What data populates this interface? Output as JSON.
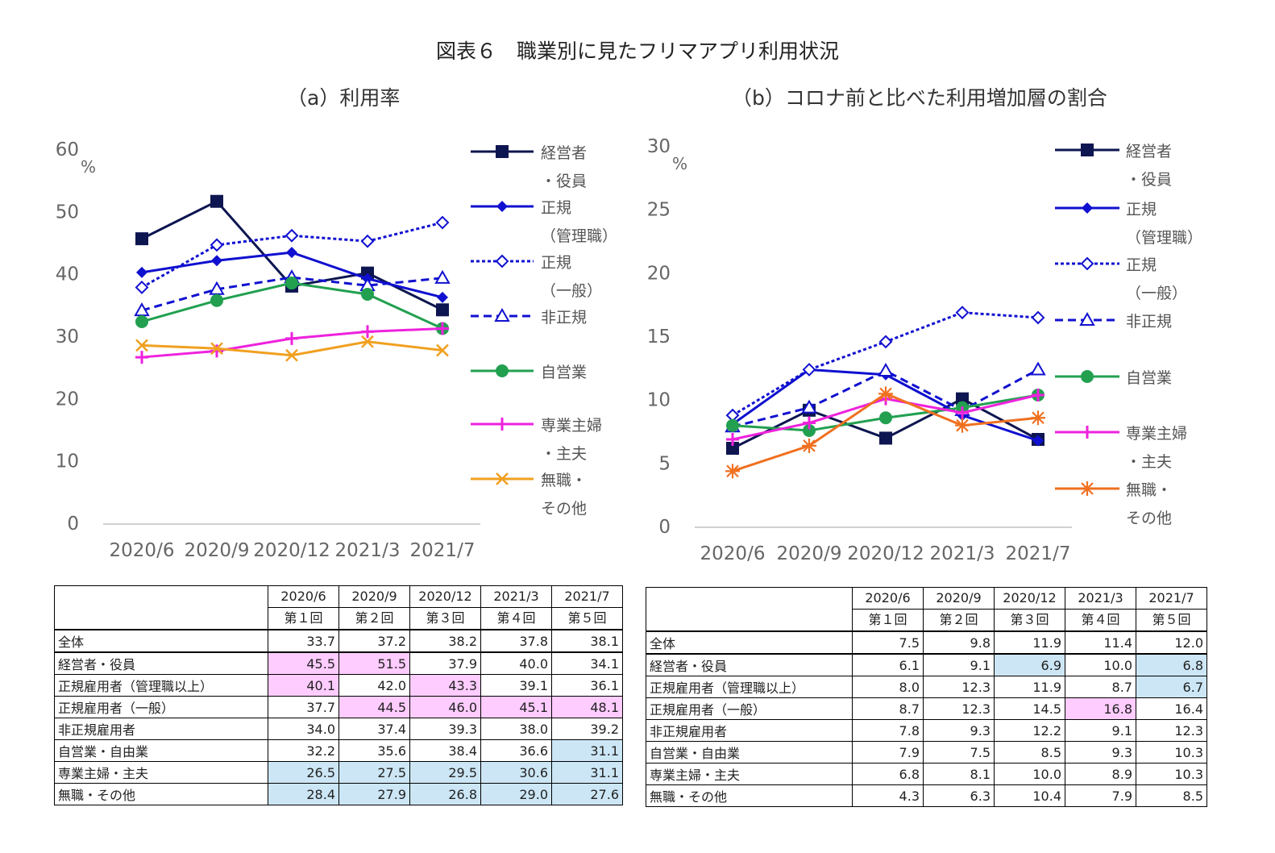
{
  "main_title": "図表６　職業別に見たフリマアプリ利用状況",
  "colors": {
    "keiei": "#0d1650",
    "seiki_kanri": "#1010d0",
    "seiki_ippan": "#1010d0",
    "hiseiki": "#1010d0",
    "jiei": "#22a050",
    "shufu": "#ee22dd",
    "mushoku_a": "#f0a020",
    "mushoku_b": "#f07020",
    "highlight_pink": "#ffccff",
    "highlight_blue": "#cce6f5"
  },
  "chart_data": [
    {
      "type": "line",
      "title": "（a）利用率",
      "ylabel": "%",
      "ylim": [
        0,
        60
      ],
      "yticks": [
        "0",
        "10",
        "20",
        "30",
        "40",
        "50",
        "60"
      ],
      "categories": [
        "2020/6",
        "2020/9",
        "2020/12",
        "2021/3",
        "2021/7"
      ],
      "legend_position": "right",
      "series": [
        {
          "name": "経営者・役員",
          "legend_lines": [
            "経営者",
            "・役員"
          ],
          "values": [
            45.5,
            51.5,
            37.9,
            40.0,
            34.1
          ],
          "marker": "square",
          "dash": "solid"
        },
        {
          "name": "正規（管理職）",
          "legend_lines": [
            "正規",
            "（管理職）"
          ],
          "values": [
            40.1,
            42.0,
            43.3,
            39.1,
            36.1
          ],
          "marker": "diamond",
          "dash": "solid"
        },
        {
          "name": "正規（一般）",
          "legend_lines": [
            "正規",
            "（一般）"
          ],
          "values": [
            37.7,
            44.5,
            46.0,
            45.1,
            48.1
          ],
          "marker": "diamond-open",
          "dash": "dotted"
        },
        {
          "name": "非正規",
          "legend_lines": [
            "非正規"
          ],
          "values": [
            34.0,
            37.4,
            39.3,
            38.0,
            39.2
          ],
          "marker": "triangle-open",
          "dash": "dashed"
        },
        {
          "name": "自営業",
          "legend_lines": [
            "自営業"
          ],
          "values": [
            32.2,
            35.6,
            38.4,
            36.6,
            31.1
          ],
          "marker": "circle",
          "dash": "solid"
        },
        {
          "name": "専業主婦・主夫",
          "legend_lines": [
            "専業主婦",
            "・主夫"
          ],
          "values": [
            26.5,
            27.5,
            29.5,
            30.6,
            31.1
          ],
          "marker": "plus",
          "dash": "solid"
        },
        {
          "name": "無職・その他",
          "legend_lines": [
            "無職・",
            "その他"
          ],
          "values": [
            28.4,
            27.9,
            26.8,
            29.0,
            27.6
          ],
          "marker": "x",
          "dash": "solid"
        }
      ]
    },
    {
      "type": "line",
      "title": "（b）コロナ前と比べた利用増加層の割合",
      "ylabel": "%",
      "ylim": [
        0,
        30
      ],
      "yticks": [
        "0",
        "5",
        "10",
        "15",
        "20",
        "25",
        "30"
      ],
      "categories": [
        "2020/6",
        "2020/9",
        "2020/12",
        "2021/3",
        "2021/7"
      ],
      "legend_position": "right",
      "series": [
        {
          "name": "経営者・役員",
          "legend_lines": [
            "経営者",
            "・役員"
          ],
          "values": [
            6.1,
            9.1,
            6.9,
            10.0,
            6.8
          ],
          "marker": "square",
          "dash": "solid"
        },
        {
          "name": "正規（管理職）",
          "legend_lines": [
            "正規",
            "（管理職）"
          ],
          "values": [
            8.0,
            12.3,
            11.9,
            8.7,
            6.7
          ],
          "marker": "diamond",
          "dash": "solid"
        },
        {
          "name": "正規（一般）",
          "legend_lines": [
            "正規",
            "（一般）"
          ],
          "values": [
            8.7,
            12.3,
            14.5,
            16.8,
            16.4
          ],
          "marker": "diamond-open",
          "dash": "dotted"
        },
        {
          "name": "非正規",
          "legend_lines": [
            "非正規"
          ],
          "values": [
            7.8,
            9.3,
            12.2,
            9.1,
            12.3
          ],
          "marker": "triangle-open",
          "dash": "dashed"
        },
        {
          "name": "自営業",
          "legend_lines": [
            "自営業"
          ],
          "values": [
            7.9,
            7.5,
            8.5,
            9.3,
            10.3
          ],
          "marker": "circle",
          "dash": "solid"
        },
        {
          "name": "専業主婦・主夫",
          "legend_lines": [
            "専業主婦",
            "・主夫"
          ],
          "values": [
            6.8,
            8.1,
            10.0,
            8.9,
            10.3
          ],
          "marker": "plus",
          "dash": "solid"
        },
        {
          "name": "無職・その他",
          "legend_lines": [
            "無職・",
            "その他"
          ],
          "values": [
            4.3,
            6.3,
            10.4,
            7.9,
            8.5
          ],
          "marker": "star",
          "dash": "solid"
        }
      ]
    },
    {
      "type": "table",
      "header": [
        [
          "2020/6",
          "第１回"
        ],
        [
          "2020/9",
          "第２回"
        ],
        [
          "2020/12",
          "第３回"
        ],
        [
          "2021/3",
          "第４回"
        ],
        [
          "2021/7",
          "第５回"
        ]
      ],
      "rows": [
        {
          "label": "全体",
          "values": [
            "33.7",
            "37.2",
            "38.2",
            "37.8",
            "38.1"
          ],
          "hl": [
            "",
            "",
            "",
            "",
            ""
          ]
        },
        {
          "label": "経営者・役員",
          "values": [
            "45.5",
            "51.5",
            "37.9",
            "40.0",
            "34.1"
          ],
          "hl": [
            "pink",
            "pink",
            "",
            "",
            ""
          ]
        },
        {
          "label": "正規雇用者（管理職以上）",
          "values": [
            "40.1",
            "42.0",
            "43.3",
            "39.1",
            "36.1"
          ],
          "hl": [
            "pink",
            "",
            "pink",
            "",
            ""
          ]
        },
        {
          "label": "正規雇用者（一般）",
          "values": [
            "37.7",
            "44.5",
            "46.0",
            "45.1",
            "48.1"
          ],
          "hl": [
            "",
            "pink",
            "pink",
            "pink",
            "pink"
          ]
        },
        {
          "label": "非正規雇用者",
          "values": [
            "34.0",
            "37.4",
            "39.3",
            "38.0",
            "39.2"
          ],
          "hl": [
            "",
            "",
            "",
            "",
            ""
          ]
        },
        {
          "label": "自営業・自由業",
          "values": [
            "32.2",
            "35.6",
            "38.4",
            "36.6",
            "31.1"
          ],
          "hl": [
            "",
            "",
            "",
            "",
            "blue"
          ]
        },
        {
          "label": "専業主婦・主夫",
          "values": [
            "26.5",
            "27.5",
            "29.5",
            "30.6",
            "31.1"
          ],
          "hl": [
            "blue",
            "blue",
            "blue",
            "blue",
            "blue"
          ]
        },
        {
          "label": "無職・その他",
          "values": [
            "28.4",
            "27.9",
            "26.8",
            "29.0",
            "27.6"
          ],
          "hl": [
            "blue",
            "blue",
            "blue",
            "blue",
            "blue"
          ]
        }
      ]
    },
    {
      "type": "table",
      "header": [
        [
          "2020/6",
          "第１回"
        ],
        [
          "2020/9",
          "第２回"
        ],
        [
          "2020/12",
          "第３回"
        ],
        [
          "2021/3",
          "第４回"
        ],
        [
          "2021/7",
          "第５回"
        ]
      ],
      "rows": [
        {
          "label": "全体",
          "values": [
            "7.5",
            "9.8",
            "11.9",
            "11.4",
            "12.0"
          ],
          "hl": [
            "",
            "",
            "",
            "",
            ""
          ]
        },
        {
          "label": "経営者・役員",
          "values": [
            "6.1",
            "9.1",
            "6.9",
            "10.0",
            "6.8"
          ],
          "hl": [
            "",
            "",
            "blue",
            "",
            "blue"
          ]
        },
        {
          "label": "正規雇用者（管理職以上）",
          "values": [
            "8.0",
            "12.3",
            "11.9",
            "8.7",
            "6.7"
          ],
          "hl": [
            "",
            "",
            "",
            "",
            "blue"
          ]
        },
        {
          "label": "正規雇用者（一般）",
          "values": [
            "8.7",
            "12.3",
            "14.5",
            "16.8",
            "16.4"
          ],
          "hl": [
            "",
            "",
            "",
            "pink",
            ""
          ]
        },
        {
          "label": "非正規雇用者",
          "values": [
            "7.8",
            "9.3",
            "12.2",
            "9.1",
            "12.3"
          ],
          "hl": [
            "",
            "",
            "",
            "",
            ""
          ]
        },
        {
          "label": "自営業・自由業",
          "values": [
            "7.9",
            "7.5",
            "8.5",
            "9.3",
            "10.3"
          ],
          "hl": [
            "",
            "",
            "",
            "",
            ""
          ]
        },
        {
          "label": "専業主婦・主夫",
          "values": [
            "6.8",
            "8.1",
            "10.0",
            "8.9",
            "10.3"
          ],
          "hl": [
            "",
            "",
            "",
            "",
            ""
          ]
        },
        {
          "label": "無職・その他",
          "values": [
            "4.3",
            "6.3",
            "10.4",
            "7.9",
            "8.5"
          ],
          "hl": [
            "",
            "",
            "",
            "",
            ""
          ]
        }
      ]
    }
  ]
}
